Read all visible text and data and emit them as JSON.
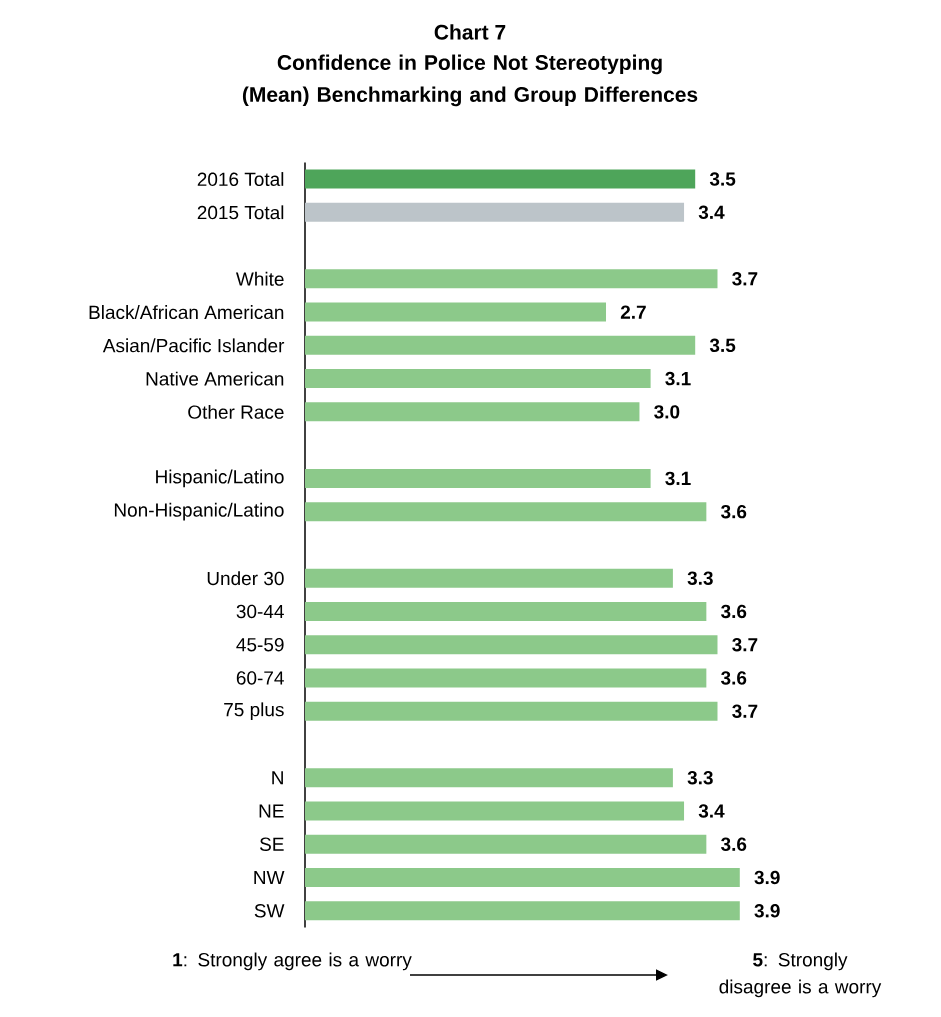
{
  "chart_data": {
    "type": "bar",
    "orientation": "horizontal",
    "title": "Chart 7",
    "subtitle": "Confidence in Police Not Stereotyping (Mean) Benchmarking and Group Differences",
    "categories": [
      "2016 Total",
      "2015 Total",
      null,
      "White",
      "Black/African American",
      "Asian/Pacific Islander",
      "Native American",
      "Other Race",
      null,
      "Hispanic/Latino",
      "Non-Hispanic/Latino",
      null,
      "Under 30",
      "30-44",
      "45-59",
      "60-74",
      "75 plus",
      null,
      "N",
      "NE",
      "SE",
      "NW",
      "SW"
    ],
    "values": [
      3.5,
      3.4,
      null,
      3.7,
      2.7,
      3.5,
      3.1,
      3.0,
      null,
      3.1,
      3.6,
      null,
      3.3,
      3.6,
      3.7,
      3.6,
      3.7,
      null,
      3.3,
      3.4,
      3.6,
      3.9,
      3.9
    ],
    "colors": [
      "#4ea55a",
      "#bcc4c9",
      null,
      "#8cc98a",
      "#8cc98a",
      "#8cc98a",
      "#8cc98a",
      "#8cc98a",
      null,
      "#8cc98a",
      "#8cc98a",
      null,
      "#8cc98a",
      "#8cc98a",
      "#8cc98a",
      "#8cc98a",
      "#8cc98a",
      null,
      "#8cc98a",
      "#8cc98a",
      "#8cc98a",
      "#8cc98a",
      "#8cc98a"
    ],
    "value_labels": [
      "3.5",
      "3.4",
      null,
      "3.7",
      "2.7",
      "3.5",
      "3.1",
      "3.0",
      null,
      "3.1",
      "3.6",
      null,
      "3.3",
      "3.6",
      "3.7",
      "3.6",
      "3.7",
      null,
      "3.3",
      "3.4",
      "3.6",
      "3.9",
      "3.9"
    ],
    "annotations": [
      "**1**: Strongly agree is a worry",
      "**5**: Strongly disagree is a worry"
    ]
  }
}
